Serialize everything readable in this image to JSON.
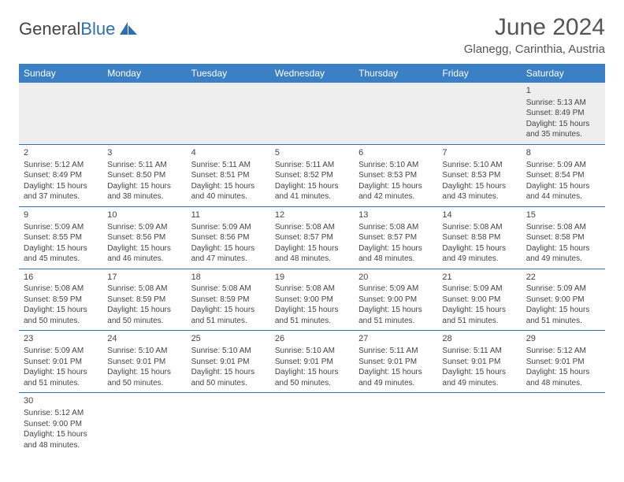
{
  "logo": {
    "part1": "General",
    "part2": "Blue"
  },
  "title": "June 2024",
  "location": "Glanegg, Carinthia, Austria",
  "colors": {
    "header_bg": "#3b7fc4",
    "header_text": "#ffffff",
    "row_border": "#2f6fb0",
    "firstweek_bg": "#eeeeee",
    "text": "#444444",
    "logo_accent": "#2f6fb0"
  },
  "weekdays": [
    "Sunday",
    "Monday",
    "Tuesday",
    "Wednesday",
    "Thursday",
    "Friday",
    "Saturday"
  ],
  "days": [
    {
      "n": 1,
      "sr": "5:13 AM",
      "ss": "8:49 PM",
      "dl": "15 hours and 35 minutes."
    },
    {
      "n": 2,
      "sr": "5:12 AM",
      "ss": "8:49 PM",
      "dl": "15 hours and 37 minutes."
    },
    {
      "n": 3,
      "sr": "5:11 AM",
      "ss": "8:50 PM",
      "dl": "15 hours and 38 minutes."
    },
    {
      "n": 4,
      "sr": "5:11 AM",
      "ss": "8:51 PM",
      "dl": "15 hours and 40 minutes."
    },
    {
      "n": 5,
      "sr": "5:11 AM",
      "ss": "8:52 PM",
      "dl": "15 hours and 41 minutes."
    },
    {
      "n": 6,
      "sr": "5:10 AM",
      "ss": "8:53 PM",
      "dl": "15 hours and 42 minutes."
    },
    {
      "n": 7,
      "sr": "5:10 AM",
      "ss": "8:53 PM",
      "dl": "15 hours and 43 minutes."
    },
    {
      "n": 8,
      "sr": "5:09 AM",
      "ss": "8:54 PM",
      "dl": "15 hours and 44 minutes."
    },
    {
      "n": 9,
      "sr": "5:09 AM",
      "ss": "8:55 PM",
      "dl": "15 hours and 45 minutes."
    },
    {
      "n": 10,
      "sr": "5:09 AM",
      "ss": "8:56 PM",
      "dl": "15 hours and 46 minutes."
    },
    {
      "n": 11,
      "sr": "5:09 AM",
      "ss": "8:56 PM",
      "dl": "15 hours and 47 minutes."
    },
    {
      "n": 12,
      "sr": "5:08 AM",
      "ss": "8:57 PM",
      "dl": "15 hours and 48 minutes."
    },
    {
      "n": 13,
      "sr": "5:08 AM",
      "ss": "8:57 PM",
      "dl": "15 hours and 48 minutes."
    },
    {
      "n": 14,
      "sr": "5:08 AM",
      "ss": "8:58 PM",
      "dl": "15 hours and 49 minutes."
    },
    {
      "n": 15,
      "sr": "5:08 AM",
      "ss": "8:58 PM",
      "dl": "15 hours and 49 minutes."
    },
    {
      "n": 16,
      "sr": "5:08 AM",
      "ss": "8:59 PM",
      "dl": "15 hours and 50 minutes."
    },
    {
      "n": 17,
      "sr": "5:08 AM",
      "ss": "8:59 PM",
      "dl": "15 hours and 50 minutes."
    },
    {
      "n": 18,
      "sr": "5:08 AM",
      "ss": "8:59 PM",
      "dl": "15 hours and 51 minutes."
    },
    {
      "n": 19,
      "sr": "5:08 AM",
      "ss": "9:00 PM",
      "dl": "15 hours and 51 minutes."
    },
    {
      "n": 20,
      "sr": "5:09 AM",
      "ss": "9:00 PM",
      "dl": "15 hours and 51 minutes."
    },
    {
      "n": 21,
      "sr": "5:09 AM",
      "ss": "9:00 PM",
      "dl": "15 hours and 51 minutes."
    },
    {
      "n": 22,
      "sr": "5:09 AM",
      "ss": "9:00 PM",
      "dl": "15 hours and 51 minutes."
    },
    {
      "n": 23,
      "sr": "5:09 AM",
      "ss": "9:01 PM",
      "dl": "15 hours and 51 minutes."
    },
    {
      "n": 24,
      "sr": "5:10 AM",
      "ss": "9:01 PM",
      "dl": "15 hours and 50 minutes."
    },
    {
      "n": 25,
      "sr": "5:10 AM",
      "ss": "9:01 PM",
      "dl": "15 hours and 50 minutes."
    },
    {
      "n": 26,
      "sr": "5:10 AM",
      "ss": "9:01 PM",
      "dl": "15 hours and 50 minutes."
    },
    {
      "n": 27,
      "sr": "5:11 AM",
      "ss": "9:01 PM",
      "dl": "15 hours and 49 minutes."
    },
    {
      "n": 28,
      "sr": "5:11 AM",
      "ss": "9:01 PM",
      "dl": "15 hours and 49 minutes."
    },
    {
      "n": 29,
      "sr": "5:12 AM",
      "ss": "9:01 PM",
      "dl": "15 hours and 48 minutes."
    },
    {
      "n": 30,
      "sr": "5:12 AM",
      "ss": "9:00 PM",
      "dl": "15 hours and 48 minutes."
    }
  ],
  "labels": {
    "sunrise": "Sunrise: ",
    "sunset": "Sunset: ",
    "daylight": "Daylight: "
  },
  "layout": {
    "first_weekday_index": 6,
    "rows": 6,
    "cols": 7
  }
}
